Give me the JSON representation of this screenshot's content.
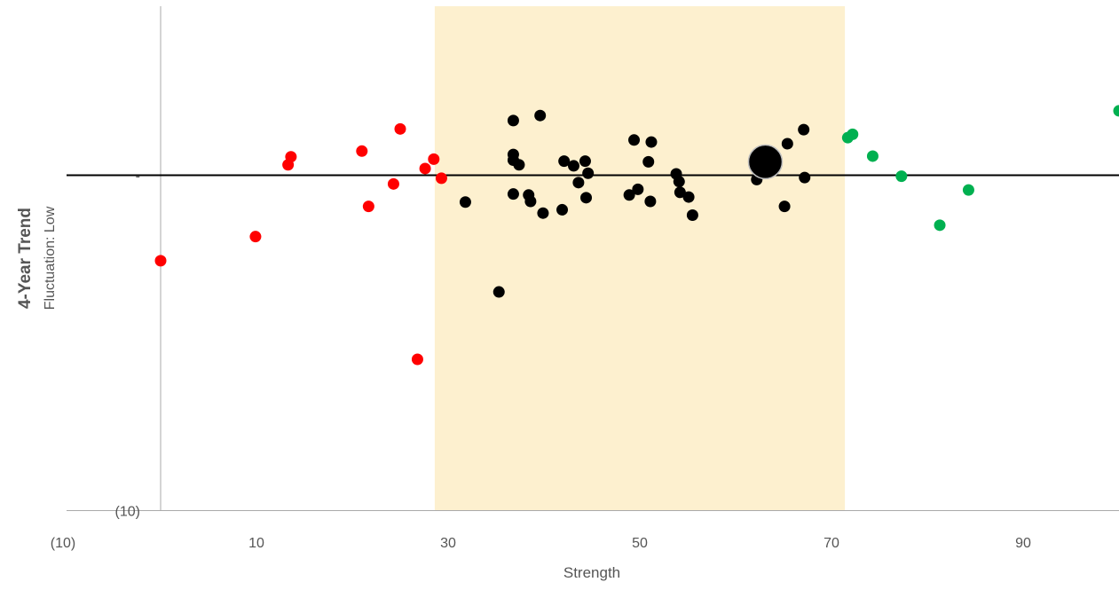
{
  "chart_data": {
    "type": "scatter",
    "title": "",
    "xlabel": "Strength",
    "ylabel": "4-Year Trend",
    "ylabel_sub": "Fluctuation: Low",
    "xlim": [
      -10,
      100
    ],
    "ylim": [
      -10,
      5
    ],
    "x_ticks": [
      -10,
      10,
      30,
      50,
      70,
      90
    ],
    "x_tick_labels": [
      "(10)",
      "10",
      "30",
      "50",
      "70",
      "90"
    ],
    "y_tick_labels": [
      "(10)",
      "-"
    ],
    "y_tick_values": [
      -10,
      0
    ],
    "highlight_band": {
      "x_from": 28.6,
      "x_to": 71.4,
      "color": "#fdf0cf"
    },
    "zero_line": 0,
    "grid": false,
    "legend": "none",
    "colors": {
      "low": "#ff0000",
      "mid": "#000000",
      "high": "#00b050",
      "axis": "#aaaaaa"
    },
    "series": [
      {
        "color": "#ff0000",
        "points": [
          [
            0.0,
            -2.55
          ],
          [
            9.9,
            -1.83
          ],
          [
            13.3,
            0.31
          ],
          [
            13.6,
            0.55
          ],
          [
            21.0,
            0.72
          ],
          [
            21.7,
            -0.93
          ],
          [
            24.3,
            -0.26
          ],
          [
            25.0,
            1.38
          ],
          [
            26.8,
            -5.49
          ],
          [
            27.6,
            0.2
          ],
          [
            28.5,
            0.48
          ],
          [
            29.3,
            -0.09
          ]
        ]
      },
      {
        "color": "#000000",
        "points": [
          [
            31.8,
            -0.8
          ],
          [
            35.3,
            -3.48
          ],
          [
            36.8,
            1.63
          ],
          [
            36.8,
            0.62
          ],
          [
            36.8,
            0.45
          ],
          [
            36.8,
            -0.56
          ],
          [
            37.4,
            0.31
          ],
          [
            38.4,
            -0.59
          ],
          [
            38.6,
            -0.78
          ],
          [
            39.6,
            1.78
          ],
          [
            39.9,
            -1.13
          ],
          [
            41.9,
            -1.03
          ],
          [
            42.1,
            0.42
          ],
          [
            43.1,
            0.28
          ],
          [
            43.6,
            -0.22
          ],
          [
            44.3,
            0.42
          ],
          [
            44.4,
            -0.67
          ],
          [
            44.6,
            0.06
          ],
          [
            48.9,
            -0.59
          ],
          [
            49.4,
            1.05
          ],
          [
            49.8,
            -0.42
          ],
          [
            50.9,
            0.4
          ],
          [
            51.1,
            -0.78
          ],
          [
            51.2,
            0.99
          ],
          [
            53.8,
            0.04
          ],
          [
            54.1,
            -0.19
          ],
          [
            54.2,
            -0.51
          ],
          [
            55.1,
            -0.65
          ],
          [
            55.5,
            -1.19
          ],
          [
            62.2,
            -0.13
          ],
          [
            65.1,
            -0.93
          ],
          [
            65.4,
            0.94
          ],
          [
            67.1,
            1.36
          ],
          [
            67.2,
            -0.07
          ]
        ]
      },
      {
        "color": "#00b050",
        "points": [
          [
            71.7,
            1.12
          ],
          [
            72.2,
            1.22
          ],
          [
            74.3,
            0.57
          ],
          [
            77.3,
            -0.03
          ],
          [
            81.3,
            -1.49
          ],
          [
            84.3,
            -0.44
          ],
          [
            100.0,
            1.92
          ]
        ]
      }
    ],
    "highlight_point": {
      "x": 63.1,
      "y": 0.4,
      "color": "#000000",
      "outline": "#bfbfbf"
    }
  }
}
